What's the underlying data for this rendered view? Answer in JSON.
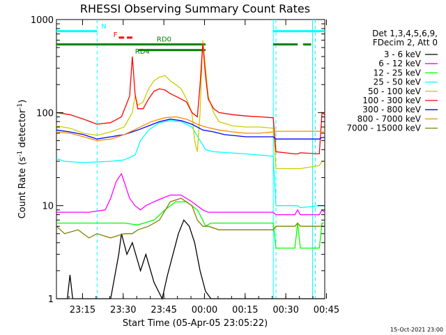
{
  "chart_data": {
    "type": "line",
    "title": "RHESSI Observing Summary Count Rates",
    "xlabel": "Start Time (05-Apr-05 23:05:22)",
    "ylabel_main": "Count Rate (s",
    "ylabel_sup1": "-1",
    "ylabel_mid": " detector",
    "ylabel_sup2": "-1",
    "ylabel_end": ")",
    "yscale": "log",
    "ylim": [
      1,
      1000
    ],
    "y_ticks": [
      {
        "value": 1,
        "label": "1"
      },
      {
        "value": 10,
        "label": "10"
      },
      {
        "value": 100,
        "label": "100"
      },
      {
        "value": 1000,
        "label": "1000"
      }
    ],
    "x_range_minutes": [
      0,
      99
    ],
    "x_ticks": [
      {
        "minute": 9.63,
        "label": "23:15"
      },
      {
        "minute": 24.63,
        "label": "23:30"
      },
      {
        "minute": 39.63,
        "label": "23:45"
      },
      {
        "minute": 54.63,
        "label": "00:00"
      },
      {
        "minute": 69.63,
        "label": "00:15"
      },
      {
        "minute": 84.63,
        "label": "00:30"
      },
      {
        "minute": 99.63,
        "label": "00:45"
      }
    ],
    "legend_header": [
      "Det 1,3,4,5,6,9,",
      "FDecim 2, Att 0"
    ],
    "legend_position": "right",
    "series": [
      {
        "name": "3 - 6 keV",
        "color": "#000000",
        "points": [
          [
            0,
            1
          ],
          [
            4,
            1
          ],
          [
            5,
            1.8
          ],
          [
            6,
            1
          ],
          [
            20,
            1
          ],
          [
            23,
            3
          ],
          [
            24,
            5
          ],
          [
            26,
            3
          ],
          [
            28,
            4
          ],
          [
            31,
            2
          ],
          [
            33,
            3
          ],
          [
            36,
            1.5
          ],
          [
            39,
            1
          ],
          [
            41,
            1.8
          ],
          [
            43,
            3
          ],
          [
            45,
            5
          ],
          [
            47,
            7
          ],
          [
            49,
            6
          ],
          [
            51,
            4
          ],
          [
            53,
            2
          ],
          [
            55,
            1.2
          ],
          [
            57,
            1
          ],
          [
            99,
            1
          ]
        ]
      },
      {
        "name": "6 - 12 keV",
        "color": "#ff00ff",
        "points": [
          [
            0,
            8.5
          ],
          [
            12,
            8.5
          ],
          [
            18,
            9
          ],
          [
            20,
            12
          ],
          [
            22,
            18
          ],
          [
            23,
            20
          ],
          [
            24,
            22
          ],
          [
            25,
            18
          ],
          [
            27,
            12
          ],
          [
            29,
            10
          ],
          [
            31,
            9
          ],
          [
            33,
            10
          ],
          [
            36,
            11
          ],
          [
            39,
            12
          ],
          [
            42,
            13
          ],
          [
            46,
            13
          ],
          [
            50,
            11
          ],
          [
            54,
            9
          ],
          [
            56,
            8.5
          ],
          [
            80,
            8.5
          ],
          [
            81,
            8
          ],
          [
            88,
            8
          ],
          [
            89,
            9
          ],
          [
            90,
            8
          ],
          [
            97,
            8
          ],
          [
            98,
            9
          ],
          [
            99,
            8.5
          ]
        ]
      },
      {
        "name": "12 - 25 keV",
        "color": "#00ff00",
        "points": [
          [
            0,
            6.5
          ],
          [
            25,
            6.5
          ],
          [
            30,
            6.2
          ],
          [
            36,
            7
          ],
          [
            40,
            9
          ],
          [
            44,
            11
          ],
          [
            48,
            11
          ],
          [
            52,
            9
          ],
          [
            54,
            7
          ],
          [
            55,
            6
          ],
          [
            57,
            6.5
          ],
          [
            80,
            6.5
          ],
          [
            81,
            3.5
          ],
          [
            88,
            3.5
          ],
          [
            89,
            6.5
          ],
          [
            90,
            3.5
          ],
          [
            97,
            3.5
          ],
          [
            98,
            6.5
          ],
          [
            99,
            6.5
          ]
        ]
      },
      {
        "name": "25 - 50 keV",
        "color": "#00ffff",
        "points": [
          [
            0,
            32
          ],
          [
            3,
            30
          ],
          [
            10,
            29
          ],
          [
            20,
            30
          ],
          [
            25,
            31
          ],
          [
            29,
            35
          ],
          [
            31,
            50
          ],
          [
            34,
            65
          ],
          [
            38,
            78
          ],
          [
            42,
            82
          ],
          [
            46,
            80
          ],
          [
            50,
            70
          ],
          [
            53,
            50
          ],
          [
            55,
            40
          ],
          [
            58,
            38
          ],
          [
            70,
            36
          ],
          [
            80,
            34
          ],
          [
            81,
            10
          ],
          [
            88,
            10
          ],
          [
            89,
            10
          ],
          [
            90,
            9.5
          ],
          [
            97,
            10
          ],
          [
            98,
            10
          ],
          [
            99,
            10
          ]
        ]
      },
      {
        "name": "50 - 100 keV",
        "color": "#cccc00",
        "points": [
          [
            0,
            72
          ],
          [
            5,
            68
          ],
          [
            10,
            60
          ],
          [
            15,
            57
          ],
          [
            20,
            62
          ],
          [
            25,
            70
          ],
          [
            28,
            100
          ],
          [
            29,
            150
          ],
          [
            30,
            120
          ],
          [
            32,
            130
          ],
          [
            34,
            180
          ],
          [
            36,
            220
          ],
          [
            38,
            240
          ],
          [
            40,
            250
          ],
          [
            42,
            220
          ],
          [
            44,
            200
          ],
          [
            46,
            180
          ],
          [
            48,
            140
          ],
          [
            50,
            100
          ],
          [
            51,
            50
          ],
          [
            52,
            38
          ],
          [
            53,
            100
          ],
          [
            54,
            600
          ],
          [
            55,
            300
          ],
          [
            56,
            150
          ],
          [
            58,
            100
          ],
          [
            60,
            80
          ],
          [
            65,
            72
          ],
          [
            70,
            70
          ],
          [
            75,
            70
          ],
          [
            80,
            68
          ],
          [
            81,
            25
          ],
          [
            88,
            25
          ],
          [
            89,
            25
          ],
          [
            90,
            25
          ],
          [
            97,
            27
          ],
          [
            98,
            30
          ],
          [
            99,
            30
          ]
        ]
      },
      {
        "name": "100 - 300 keV",
        "color": "#ff0000",
        "points": [
          [
            0,
            100
          ],
          [
            5,
            95
          ],
          [
            10,
            85
          ],
          [
            15,
            75
          ],
          [
            20,
            78
          ],
          [
            24,
            90
          ],
          [
            27,
            150
          ],
          [
            28,
            400
          ],
          [
            29,
            160
          ],
          [
            30,
            110
          ],
          [
            32,
            110
          ],
          [
            34,
            140
          ],
          [
            36,
            170
          ],
          [
            38,
            180
          ],
          [
            40,
            175
          ],
          [
            42,
            160
          ],
          [
            44,
            150
          ],
          [
            46,
            140
          ],
          [
            48,
            130
          ],
          [
            50,
            100
          ],
          [
            52,
            90
          ],
          [
            53,
            200
          ],
          [
            54,
            550
          ],
          [
            55,
            250
          ],
          [
            56,
            140
          ],
          [
            58,
            110
          ],
          [
            60,
            100
          ],
          [
            65,
            95
          ],
          [
            70,
            92
          ],
          [
            75,
            90
          ],
          [
            80,
            88
          ],
          [
            81,
            38
          ],
          [
            88,
            36
          ],
          [
            89,
            36
          ],
          [
            90,
            37
          ],
          [
            97,
            36
          ],
          [
            98,
            100
          ],
          [
            99,
            95
          ]
        ]
      },
      {
        "name": "300 - 800 keV",
        "color": "#0000ff",
        "points": [
          [
            0,
            65
          ],
          [
            5,
            62
          ],
          [
            10,
            58
          ],
          [
            15,
            52
          ],
          [
            20,
            55
          ],
          [
            25,
            58
          ],
          [
            30,
            65
          ],
          [
            34,
            72
          ],
          [
            38,
            80
          ],
          [
            42,
            85
          ],
          [
            46,
            82
          ],
          [
            50,
            75
          ],
          [
            54,
            65
          ],
          [
            58,
            62
          ],
          [
            62,
            58
          ],
          [
            70,
            55
          ],
          [
            75,
            55
          ],
          [
            80,
            55
          ],
          [
            81,
            52
          ],
          [
            88,
            52
          ],
          [
            89,
            52
          ],
          [
            90,
            52
          ],
          [
            97,
            52
          ],
          [
            98,
            54
          ],
          [
            99,
            54
          ]
        ]
      },
      {
        "name": "800 - 7000 keV",
        "color": "#ff8800",
        "points": [
          [
            0,
            62
          ],
          [
            5,
            60
          ],
          [
            10,
            55
          ],
          [
            15,
            50
          ],
          [
            20,
            52
          ],
          [
            25,
            58
          ],
          [
            30,
            68
          ],
          [
            35,
            80
          ],
          [
            40,
            88
          ],
          [
            44,
            90
          ],
          [
            48,
            85
          ],
          [
            52,
            75
          ],
          [
            55,
            70
          ],
          [
            60,
            65
          ],
          [
            65,
            62
          ],
          [
            70,
            60
          ],
          [
            75,
            60
          ],
          [
            80,
            62
          ],
          [
            81,
            63
          ],
          [
            88,
            63
          ],
          [
            89,
            63
          ],
          [
            90,
            63
          ],
          [
            97,
            63
          ],
          [
            98,
            62
          ],
          [
            99,
            62
          ]
        ]
      },
      {
        "name": "7000 - 15000 keV",
        "color": "#808000",
        "points": [
          [
            0,
            6
          ],
          [
            3,
            5
          ],
          [
            8,
            5.5
          ],
          [
            12,
            4.5
          ],
          [
            15,
            5
          ],
          [
            20,
            4.5
          ],
          [
            25,
            5
          ],
          [
            28,
            5
          ],
          [
            30,
            5.5
          ],
          [
            34,
            6
          ],
          [
            38,
            7
          ],
          [
            42,
            11
          ],
          [
            46,
            12
          ],
          [
            50,
            10
          ],
          [
            52,
            7
          ],
          [
            54,
            6
          ],
          [
            56,
            6
          ],
          [
            60,
            5.5
          ],
          [
            70,
            5.5
          ],
          [
            80,
            5.5
          ],
          [
            81,
            6
          ],
          [
            88,
            6
          ],
          [
            89,
            6.5
          ],
          [
            90,
            6
          ],
          [
            97,
            6
          ],
          [
            98,
            6
          ],
          [
            99,
            6
          ]
        ]
      }
    ],
    "flag_lines": [
      {
        "name": "N",
        "color": "#00ffff",
        "segments": [
          [
            0,
            15
          ],
          [
            80,
            99
          ]
        ],
        "value": 750
      },
      {
        "name": "RD0",
        "color": "#008000",
        "segments": [
          [
            0,
            55
          ],
          [
            80,
            89
          ],
          [
            91,
            94
          ]
        ],
        "value": 540
      },
      {
        "name": "RD4",
        "color": "#008000",
        "segments": [
          [
            30,
            55
          ]
        ],
        "value": 470
      }
    ],
    "flare_marker": {
      "label": "F",
      "color": "#ff0000",
      "segments": [
        [
          23,
          25
        ],
        [
          26,
          28
        ]
      ],
      "value": 640
    },
    "flag_labels": [
      {
        "text": "N",
        "color": "#00ffff",
        "minute": 16.5,
        "value": 800
      },
      {
        "text": "F",
        "color": "#ff0000",
        "minute": 21,
        "value": 650
      },
      {
        "text": "RD0",
        "color": "#008000",
        "minute": 37,
        "value": 580
      },
      {
        "text": "RD4",
        "color": "#008000",
        "minute": 29,
        "value": 430
      }
    ],
    "vertical_markers": [
      {
        "minute": 15,
        "color": "#00ffff",
        "style": "dashed"
      },
      {
        "minute": 80,
        "color": "#00ffff",
        "style": "solid"
      },
      {
        "minute": 81,
        "color": "#00ffff",
        "style": "dashed"
      },
      {
        "minute": 94.5,
        "color": "#00ffff",
        "style": "solid"
      },
      {
        "minute": 95.5,
        "color": "#00ffff",
        "style": "dashed"
      }
    ]
  },
  "footer_stamp": "15-Oct-2021 23:00"
}
